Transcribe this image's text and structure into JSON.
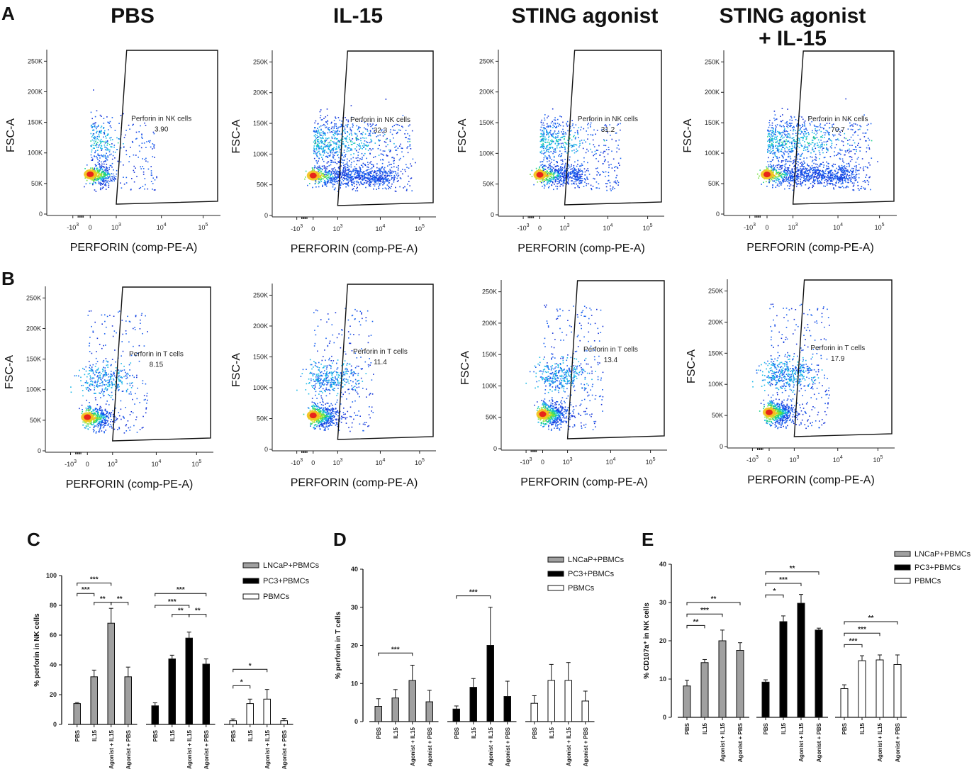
{
  "panel_labels": {
    "a": "A",
    "b": "B",
    "c": "C",
    "d": "D",
    "e": "E"
  },
  "flow": {
    "column_titles": [
      "PBS",
      "IL-15",
      "STING agonist",
      "STING agonist + IL-15"
    ],
    "column_title_lines": [
      [
        "PBS"
      ],
      [
        "IL-15"
      ],
      [
        "STING agonist"
      ],
      [
        "STING agonist",
        "+ IL-15"
      ]
    ],
    "xlabel": "PERFORIN (comp-PE-A)",
    "ylabel": "FSC-A",
    "y_ticks": [
      "0",
      "50K",
      "100K",
      "150K",
      "200K",
      "250K"
    ],
    "x_ticks": [
      "-10^3",
      "0",
      "10^3",
      "10^4",
      "10^5"
    ],
    "rows": [
      {
        "row": "A",
        "gate_label": "Perforin in NK cells",
        "values": [
          "3.90",
          "32.3",
          "31.2",
          "70.7"
        ]
      },
      {
        "row": "B",
        "gate_label": "Perforin in T cells",
        "values": [
          "8.15",
          "11.4",
          "13.4",
          "17.9"
        ]
      }
    ]
  },
  "chart_data": [
    {
      "panel": "C",
      "type": "bar",
      "ylabel": "% perforin in NK cells",
      "ylim": [
        0,
        100
      ],
      "yticks": [
        0,
        20,
        40,
        60,
        80,
        100
      ],
      "categories": [
        "PBS",
        "IL15",
        "Agonist + IL15",
        "Agonist + PBS"
      ],
      "series": [
        {
          "name": "LNCaP+PBMCs",
          "color": "#a0a0a0",
          "values": [
            14,
            32,
            68,
            32
          ],
          "errors": [
            0.7,
            4.5,
            10,
            6.5
          ]
        },
        {
          "name": "PC3+PBMCs",
          "color": "#000000",
          "values": [
            12.5,
            44,
            58,
            40.5
          ],
          "errors": [
            2,
            2.5,
            4,
            3.5
          ]
        },
        {
          "name": "PBMCs",
          "color": "#ffffff",
          "values": [
            2.5,
            14,
            17,
            2.5
          ],
          "errors": [
            1.2,
            3,
            6.5,
            1.5
          ]
        }
      ],
      "annotations": [
        {
          "series": 0,
          "from": 0,
          "to": 2,
          "label": "***",
          "y": 95
        },
        {
          "series": 0,
          "from": 0,
          "to": 1,
          "label": "***",
          "y": 88
        },
        {
          "series": 0,
          "from": 1,
          "to": 2,
          "label": "**",
          "y": 82
        },
        {
          "series": 0,
          "from": 2,
          "to": 3,
          "label": "**",
          "y": 82
        },
        {
          "series": 1,
          "from": 0,
          "to": 3,
          "label": "***",
          "y": 88
        },
        {
          "series": 1,
          "from": 0,
          "to": 2,
          "label": "***",
          "y": 80
        },
        {
          "series": 1,
          "from": 1,
          "to": 2,
          "label": "**",
          "y": 74
        },
        {
          "series": 1,
          "from": 2,
          "to": 3,
          "label": "**",
          "y": 74
        },
        {
          "series": 2,
          "from": 0,
          "to": 2,
          "label": "*",
          "y": 37
        },
        {
          "series": 2,
          "from": 0,
          "to": 1,
          "label": "*",
          "y": 26
        }
      ]
    },
    {
      "panel": "D",
      "type": "bar",
      "ylabel": "% perforin in T cells",
      "ylim": [
        0,
        40
      ],
      "yticks": [
        0,
        10,
        20,
        30,
        40
      ],
      "categories": [
        "PBS",
        "IL15",
        "Agonist + IL15",
        "Agonist + PBS"
      ],
      "series": [
        {
          "name": "LNCaP+PBMCs",
          "color": "#a0a0a0",
          "values": [
            4,
            6.2,
            10.8,
            5.2
          ],
          "errors": [
            2,
            2.2,
            4,
            3
          ]
        },
        {
          "name": "PC3+PBMCs",
          "color": "#000000",
          "values": [
            3.3,
            9,
            20,
            6.6
          ],
          "errors": [
            0.8,
            2.3,
            10,
            4
          ]
        },
        {
          "name": "PBMCs",
          "color": "#ffffff",
          "values": [
            4.8,
            10.8,
            10.8,
            5.4
          ],
          "errors": [
            2,
            4.2,
            4.7,
            2.6
          ]
        }
      ],
      "annotations": [
        {
          "series": 0,
          "from": 0,
          "to": 2,
          "label": "***",
          "y": 18
        },
        {
          "series": 1,
          "from": 0,
          "to": 2,
          "label": "***",
          "y": 33
        }
      ]
    },
    {
      "panel": "E",
      "type": "bar",
      "ylabel": "% CD107a⁺ in NK cells",
      "ylim": [
        0,
        40
      ],
      "yticks": [
        0,
        10,
        20,
        30,
        40
      ],
      "categories": [
        "PBS",
        "IL15",
        "Agonist + IL15",
        "Agonist + PBS"
      ],
      "series": [
        {
          "name": "LNCaP+PBMCs",
          "color": "#a0a0a0",
          "values": [
            8.2,
            14.3,
            20,
            17.5
          ],
          "errors": [
            1.5,
            0.8,
            2.8,
            2
          ]
        },
        {
          "name": "PC3+PBMCs",
          "color": "#000000",
          "values": [
            9.2,
            25,
            29.8,
            22.8
          ],
          "errors": [
            0.6,
            1.5,
            2.3,
            0.5
          ]
        },
        {
          "name": "PBMCs",
          "color": "#ffffff",
          "values": [
            7.5,
            14.8,
            15,
            13.8
          ],
          "errors": [
            1,
            1.3,
            1.3,
            2.5
          ]
        }
      ],
      "annotations": [
        {
          "series": 0,
          "from": 0,
          "to": 3,
          "label": "**",
          "y": 30
        },
        {
          "series": 0,
          "from": 0,
          "to": 2,
          "label": "***",
          "y": 27
        },
        {
          "series": 0,
          "from": 0,
          "to": 1,
          "label": "**",
          "y": 24
        },
        {
          "series": 1,
          "from": 0,
          "to": 3,
          "label": "**",
          "y": 38
        },
        {
          "series": 1,
          "from": 0,
          "to": 2,
          "label": "***",
          "y": 35
        },
        {
          "series": 1,
          "from": 0,
          "to": 1,
          "label": "*",
          "y": 32
        },
        {
          "series": 2,
          "from": 0,
          "to": 3,
          "label": "**",
          "y": 25
        },
        {
          "series": 2,
          "from": 0,
          "to": 2,
          "label": "***",
          "y": 22
        },
        {
          "series": 2,
          "from": 0,
          "to": 1,
          "label": "***",
          "y": 19
        }
      ]
    }
  ]
}
